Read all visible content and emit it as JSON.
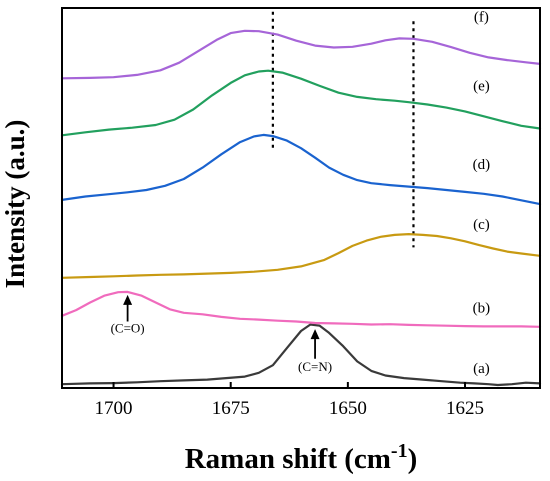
{
  "chart_data": {
    "type": "line",
    "xlabel": "Raman shift (cm",
    "xlabel_sup": "-1",
    "xlabel_close": ")",
    "ylabel": "Intensity (a.u.)",
    "xlim": [
      1711,
      1609
    ],
    "x_reversed": true,
    "ylim": [
      0,
      100
    ],
    "x_ticks": [
      1700,
      1675,
      1650,
      1625
    ],
    "grid": false,
    "y_tick_labels": false,
    "series": [
      {
        "id": "a",
        "label": "(a)",
        "color": "#3a3a3a",
        "points": [
          [
            1711,
            1.0
          ],
          [
            1705,
            1.2
          ],
          [
            1700,
            1.3
          ],
          [
            1695,
            1.5
          ],
          [
            1690,
            1.8
          ],
          [
            1685,
            2.0
          ],
          [
            1680,
            2.2
          ],
          [
            1676,
            2.6
          ],
          [
            1672,
            3.0
          ],
          [
            1669,
            4.0
          ],
          [
            1666,
            6.0
          ],
          [
            1663,
            10.5
          ],
          [
            1660,
            15.0
          ],
          [
            1658,
            16.7
          ],
          [
            1656,
            16.4
          ],
          [
            1654,
            14.5
          ],
          [
            1651,
            11.0
          ],
          [
            1648,
            7.0
          ],
          [
            1645,
            4.5
          ],
          [
            1642,
            3.3
          ],
          [
            1638,
            2.6
          ],
          [
            1634,
            2.2
          ],
          [
            1630,
            1.8
          ],
          [
            1626,
            1.4
          ],
          [
            1623,
            1.2
          ],
          [
            1620,
            1.0
          ],
          [
            1618,
            0.8
          ],
          [
            1615,
            1.0
          ],
          [
            1612,
            1.4
          ],
          [
            1609,
            1.2
          ]
        ]
      },
      {
        "id": "b",
        "label": "(b)",
        "color": "#f06bbd",
        "points": [
          [
            1711,
            19.0
          ],
          [
            1708,
            20.5
          ],
          [
            1705,
            22.5
          ],
          [
            1702,
            24.3
          ],
          [
            1699,
            25.2
          ],
          [
            1697,
            25.3
          ],
          [
            1694,
            24.3
          ],
          [
            1691,
            22.5
          ],
          [
            1688,
            20.7
          ],
          [
            1685,
            19.8
          ],
          [
            1681,
            19.4
          ],
          [
            1677,
            18.7
          ],
          [
            1673,
            18.2
          ],
          [
            1669,
            18.0
          ],
          [
            1665,
            17.7
          ],
          [
            1661,
            17.5
          ],
          [
            1657,
            17.1
          ],
          [
            1653,
            17.0
          ],
          [
            1649,
            16.9
          ],
          [
            1645,
            16.7
          ],
          [
            1641,
            16.8
          ],
          [
            1637,
            16.6
          ],
          [
            1633,
            16.5
          ],
          [
            1629,
            16.4
          ],
          [
            1625,
            16.3
          ],
          [
            1621,
            16.2
          ],
          [
            1617,
            16.2
          ],
          [
            1613,
            16.2
          ],
          [
            1609,
            16.1
          ]
        ]
      },
      {
        "id": "c",
        "label": "(c)",
        "color": "#c89a12",
        "points": [
          [
            1711,
            29.0
          ],
          [
            1705,
            29.2
          ],
          [
            1700,
            29.4
          ],
          [
            1695,
            29.6
          ],
          [
            1690,
            29.8
          ],
          [
            1685,
            29.9
          ],
          [
            1680,
            30.1
          ],
          [
            1675,
            30.3
          ],
          [
            1670,
            30.6
          ],
          [
            1665,
            31.1
          ],
          [
            1660,
            32.0
          ],
          [
            1655,
            33.7
          ],
          [
            1652,
            35.5
          ],
          [
            1649,
            37.4
          ],
          [
            1646,
            38.8
          ],
          [
            1643,
            39.8
          ],
          [
            1640,
            40.3
          ],
          [
            1637,
            40.5
          ],
          [
            1634,
            40.3
          ],
          [
            1631,
            40.0
          ],
          [
            1628,
            39.4
          ],
          [
            1625,
            38.6
          ],
          [
            1622,
            37.6
          ],
          [
            1619,
            36.7
          ],
          [
            1616,
            35.9
          ],
          [
            1613,
            35.4
          ],
          [
            1609,
            34.8
          ]
        ]
      },
      {
        "id": "d",
        "label": "(d)",
        "color": "#1a63cf",
        "points": [
          [
            1711,
            49.5
          ],
          [
            1706,
            50.4
          ],
          [
            1701,
            51.0
          ],
          [
            1697,
            51.5
          ],
          [
            1693,
            52.1
          ],
          [
            1689,
            53.2
          ],
          [
            1685,
            55.0
          ],
          [
            1681,
            58.0
          ],
          [
            1677,
            61.5
          ],
          [
            1673,
            64.7
          ],
          [
            1670,
            66.2
          ],
          [
            1668,
            66.6
          ],
          [
            1666,
            66.3
          ],
          [
            1663,
            65.1
          ],
          [
            1660,
            63.1
          ],
          [
            1657,
            60.6
          ],
          [
            1654,
            58.0
          ],
          [
            1651,
            56.1
          ],
          [
            1648,
            54.7
          ],
          [
            1645,
            53.9
          ],
          [
            1641,
            53.4
          ],
          [
            1637,
            53.0
          ],
          [
            1633,
            52.6
          ],
          [
            1629,
            52.1
          ],
          [
            1625,
            51.6
          ],
          [
            1621,
            51.1
          ],
          [
            1617,
            50.4
          ],
          [
            1613,
            49.4
          ],
          [
            1609,
            48.4
          ]
        ]
      },
      {
        "id": "e",
        "label": "(e)",
        "color": "#22a05e",
        "points": [
          [
            1711,
            66.5
          ],
          [
            1706,
            67.3
          ],
          [
            1701,
            68.0
          ],
          [
            1696,
            68.5
          ],
          [
            1691,
            69.2
          ],
          [
            1687,
            70.6
          ],
          [
            1683,
            73.3
          ],
          [
            1679,
            77.0
          ],
          [
            1675,
            80.3
          ],
          [
            1672,
            82.3
          ],
          [
            1669,
            83.3
          ],
          [
            1667,
            83.5
          ],
          [
            1664,
            83.0
          ],
          [
            1660,
            81.4
          ],
          [
            1656,
            79.5
          ],
          [
            1652,
            77.7
          ],
          [
            1648,
            76.6
          ],
          [
            1644,
            76.0
          ],
          [
            1640,
            75.6
          ],
          [
            1637,
            75.2
          ],
          [
            1633,
            74.6
          ],
          [
            1629,
            73.8
          ],
          [
            1625,
            72.8
          ],
          [
            1621,
            71.5
          ],
          [
            1617,
            70.2
          ],
          [
            1613,
            69.0
          ],
          [
            1609,
            68.3
          ]
        ]
      },
      {
        "id": "f",
        "label": "(f)",
        "color": "#a665d8",
        "points": [
          [
            1711,
            81.5
          ],
          [
            1705,
            81.6
          ],
          [
            1700,
            81.8
          ],
          [
            1695,
            82.4
          ],
          [
            1690,
            83.6
          ],
          [
            1686,
            85.6
          ],
          [
            1682,
            88.6
          ],
          [
            1678,
            91.6
          ],
          [
            1675,
            93.4
          ],
          [
            1672,
            94.0
          ],
          [
            1669,
            93.9
          ],
          [
            1665,
            93.0
          ],
          [
            1661,
            91.4
          ],
          [
            1657,
            90.1
          ],
          [
            1653,
            89.6
          ],
          [
            1649,
            89.8
          ],
          [
            1645,
            90.6
          ],
          [
            1642,
            91.5
          ],
          [
            1639,
            92.0
          ],
          [
            1636,
            91.9
          ],
          [
            1632,
            91.1
          ],
          [
            1628,
            89.7
          ],
          [
            1624,
            88.2
          ],
          [
            1620,
            87.0
          ],
          [
            1616,
            86.3
          ],
          [
            1612,
            85.7
          ],
          [
            1609,
            85.3
          ]
        ]
      }
    ],
    "reference_lines": [
      {
        "x": 1666,
        "y_from": 62.5,
        "y_to": 99.0
      },
      {
        "x": 1636,
        "y_from": 37.0,
        "y_to": 96.5
      }
    ],
    "annotations": [
      {
        "text": "(C=O)",
        "x": 1697,
        "y": 15.6,
        "arrow_from_y": 17.5,
        "arrow_to_y": 24.5
      },
      {
        "text": "(C=N)",
        "x": 1657,
        "y": 5.5,
        "arrow_from_y": 7.7,
        "arrow_to_y": 15.5
      }
    ],
    "curve_labels": [
      {
        "text": "(a)",
        "x": 1621.5,
        "y": 5.3
      },
      {
        "text": "(b)",
        "x": 1621.5,
        "y": 21.2
      },
      {
        "text": "(c)",
        "x": 1621.5,
        "y": 43.1
      },
      {
        "text": "(d)",
        "x": 1621.5,
        "y": 59.0
      },
      {
        "text": "(e)",
        "x": 1621.5,
        "y": 79.6
      },
      {
        "text": "(f)",
        "x": 1621.5,
        "y": 97.8
      }
    ]
  }
}
